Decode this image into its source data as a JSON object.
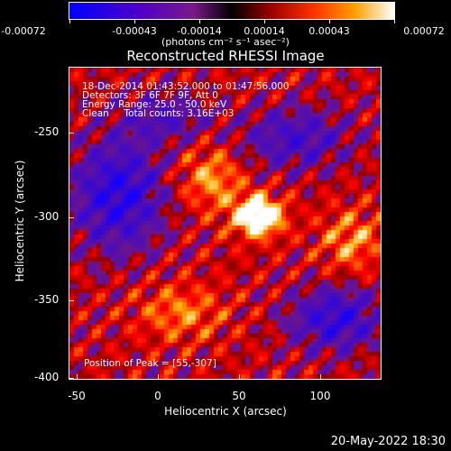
{
  "colorbar": {
    "ticks": [
      "-0.00072",
      "-0.00043",
      "-0.00014",
      "0.00014",
      "0.00043",
      "0.00072"
    ],
    "units": "(photons cm⁻² s⁻¹ asec⁻²)"
  },
  "title": "Reconstructed RHESSI Image",
  "info": {
    "time_range": "18-Dec-2014 01:43:52.000 to 01:47:56.000",
    "detectors": "Detectors: 3F 6F 7F 9F, Att 0",
    "energy_range": "Energy Range: 25.0 - 50.0 keV",
    "clean": "Clean     Total counts: 3.16E+03",
    "peak": "Position of Peak = [55,-307]"
  },
  "axes": {
    "ylabel": "Heliocentric Y (arcsec)",
    "xlabel": "Heliocentric X (arcsec)",
    "yticks": [
      "-250",
      "-300",
      "-350",
      "-400"
    ],
    "xticks": [
      "-50",
      "0",
      "50",
      "100"
    ]
  },
  "timestamp": "20-May-2022 18:30"
}
